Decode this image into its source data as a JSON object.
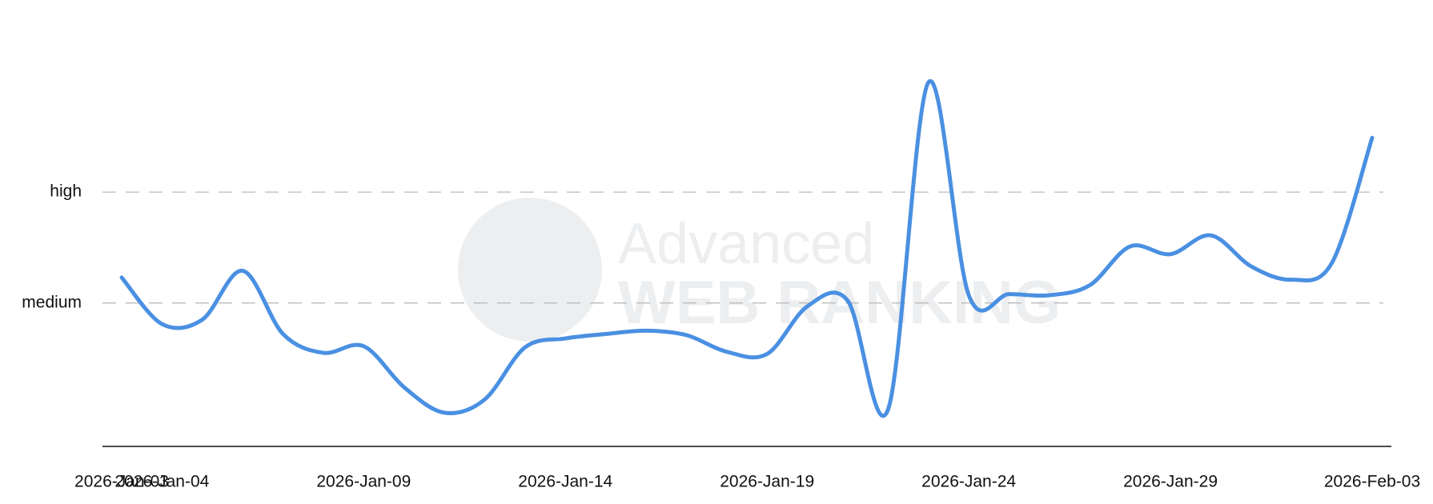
{
  "chart_data": {
    "type": "line",
    "watermark": [
      "Advanced",
      "WEB RANKING"
    ],
    "categories": [
      "2026-Jan-03",
      "2026-Jan-04",
      null,
      null,
      null,
      null,
      "2026-Jan-09",
      null,
      null,
      null,
      null,
      "2026-Jan-14",
      null,
      null,
      null,
      null,
      "2026-Jan-19",
      null,
      null,
      null,
      null,
      "2026-Jan-24",
      null,
      null,
      null,
      null,
      "2026-Jan-29",
      null,
      null,
      null,
      null,
      "2026-Feb-03"
    ],
    "series": [
      {
        "color": "#4a90e2",
        "values": [
          1.23,
          0.81,
          0.85,
          1.29,
          0.72,
          0.55,
          0.61,
          0.24,
          0.01,
          0.13,
          0.6,
          0.68,
          0.72,
          0.75,
          0.71,
          0.56,
          0.54,
          0.97,
          1.02,
          0.04,
          2.99,
          1.07,
          1.08,
          1.07,
          1.16,
          1.51,
          1.44,
          1.61,
          1.33,
          1.21,
          1.36,
          2.49
        ]
      }
    ],
    "ylim": [
      -0.33,
      3.3
    ],
    "yticks": [
      {
        "value": 1,
        "label": "medium"
      },
      {
        "value": 2,
        "label": "high"
      }
    ],
    "grid": true
  }
}
